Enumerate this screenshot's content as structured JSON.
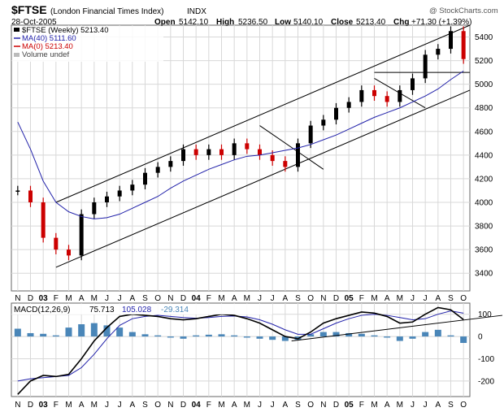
{
  "header": {
    "symbol": "$FTSE",
    "name": "(London Financial Times Index)",
    "exchange": "INDX",
    "date": "28-Oct-2005",
    "open_label": "Open",
    "open": "5142.10",
    "high_label": "High",
    "high": "5236.50",
    "low_label": "Low",
    "low": "5140.10",
    "close_label": "Close",
    "close": "5213.40",
    "chg_label": "Chg",
    "chg": "+71.30 (+1.39%)",
    "credit": "@ StockCharts.com"
  },
  "legend": {
    "price": "$FTSE (Weekly) 5213.40",
    "ma40": "MA(40) 5111.60",
    "ma0": "MA(0) 5213.40",
    "volume": "Volume undef"
  },
  "macd_legend": {
    "label": "MACD(12,26,9)",
    "macd": "75.713",
    "signal": "105.028",
    "hist": "-29.314"
  },
  "colors": {
    "grid": "#d8d8d8",
    "price_up": "#000000",
    "price_down": "#cc0000",
    "ma40": "#2222aa",
    "ma0": "#cc0000",
    "macd_line": "#000000",
    "signal_line": "#2222aa",
    "histogram": "#4a86b8",
    "trendline": "#000000",
    "frame": "#666666"
  },
  "month_labels": [
    "N",
    "D",
    "03",
    "F",
    "M",
    "A",
    "M",
    "J",
    "J",
    "A",
    "S",
    "O",
    "N",
    "D",
    "04",
    "F",
    "M",
    "A",
    "M",
    "J",
    "J",
    "A",
    "S",
    "O",
    "N",
    "D",
    "05",
    "F",
    "M",
    "A",
    "M",
    "J",
    "J",
    "A",
    "S",
    "O"
  ],
  "chart_data": [
    {
      "type": "line",
      "title": "$FTSE (London Financial Times Index) INDX — Weekly",
      "y_ticks": [
        3400,
        3600,
        3800,
        4000,
        4200,
        4400,
        4600,
        4800,
        5000,
        5200,
        5400
      ],
      "ylim": [
        3250,
        5500
      ],
      "x_range": [
        "2002-11",
        "2005-10"
      ],
      "grid": true,
      "series": [
        {
          "name": "$FTSE (Weekly)",
          "x": [
            "2002-11",
            "2002-12",
            "2003-01",
            "2003-02",
            "2003-03",
            "2003-04",
            "2003-05",
            "2003-06",
            "2003-07",
            "2003-08",
            "2003-09",
            "2003-10",
            "2003-11",
            "2003-12",
            "2004-01",
            "2004-02",
            "2004-03",
            "2004-04",
            "2004-05",
            "2004-06",
            "2004-07",
            "2004-08",
            "2004-09",
            "2004-10",
            "2004-11",
            "2004-12",
            "2005-01",
            "2005-02",
            "2005-03",
            "2005-04",
            "2005-05",
            "2005-06",
            "2005-07",
            "2005-08",
            "2005-09",
            "2005-10"
          ],
          "values": [
            4100,
            4000,
            3700,
            3600,
            3550,
            3900,
            4000,
            4050,
            4100,
            4150,
            4250,
            4300,
            4350,
            4450,
            4400,
            4450,
            4400,
            4500,
            4450,
            4400,
            4350,
            4300,
            4500,
            4650,
            4700,
            4800,
            4850,
            4950,
            4900,
            4850,
            4950,
            5050,
            5250,
            5300,
            5450,
            5213
          ]
        },
        {
          "name": "MA(40)",
          "x": [
            "2002-11",
            "2002-12",
            "2003-01",
            "2003-02",
            "2003-03",
            "2003-04",
            "2003-05",
            "2003-06",
            "2003-07",
            "2003-08",
            "2003-09",
            "2003-10",
            "2003-11",
            "2003-12",
            "2004-01",
            "2004-02",
            "2004-03",
            "2004-04",
            "2004-05",
            "2004-06",
            "2004-07",
            "2004-08",
            "2004-09",
            "2004-10",
            "2004-11",
            "2004-12",
            "2005-01",
            "2005-02",
            "2005-03",
            "2005-04",
            "2005-05",
            "2005-06",
            "2005-07",
            "2005-08",
            "2005-09",
            "2005-10"
          ],
          "values": [
            4680,
            4450,
            4180,
            4000,
            3920,
            3880,
            3860,
            3870,
            3900,
            3950,
            4000,
            4050,
            4120,
            4180,
            4230,
            4280,
            4320,
            4360,
            4390,
            4400,
            4420,
            4440,
            4460,
            4490,
            4530,
            4570,
            4620,
            4670,
            4720,
            4760,
            4800,
            4850,
            4900,
            4960,
            5040,
            5112
          ]
        }
      ]
    },
    {
      "type": "line",
      "title": "MACD(12,26,9)",
      "y_ticks": [
        -200,
        -100,
        0,
        100
      ],
      "ylim": [
        -270,
        150
      ],
      "x_range": [
        "2002-11",
        "2005-10"
      ],
      "grid": true,
      "series": [
        {
          "name": "MACD",
          "values": [
            -260,
            -200,
            -175,
            -180,
            -170,
            -100,
            -20,
            40,
            90,
            100,
            95,
            90,
            80,
            75,
            80,
            90,
            100,
            95,
            80,
            60,
            30,
            0,
            -10,
            20,
            60,
            80,
            95,
            110,
            105,
            90,
            60,
            65,
            100,
            130,
            120,
            76
          ]
        },
        {
          "name": "Signal",
          "values": [
            -200,
            -190,
            -185,
            -180,
            -175,
            -140,
            -80,
            -10,
            50,
            80,
            90,
            95,
            90,
            85,
            82,
            85,
            90,
            92,
            88,
            75,
            55,
            30,
            10,
            10,
            35,
            60,
            80,
            95,
            100,
            95,
            85,
            75,
            80,
            100,
            115,
            105
          ]
        },
        {
          "name": "Histogram",
          "values": [
            35,
            15,
            12,
            5,
            40,
            55,
            60,
            50,
            40,
            20,
            10,
            5,
            -5,
            -10,
            5,
            8,
            10,
            5,
            -5,
            -10,
            -15,
            -20,
            -15,
            10,
            20,
            20,
            15,
            12,
            5,
            -5,
            -20,
            -10,
            20,
            30,
            5,
            -29
          ]
        }
      ]
    }
  ]
}
